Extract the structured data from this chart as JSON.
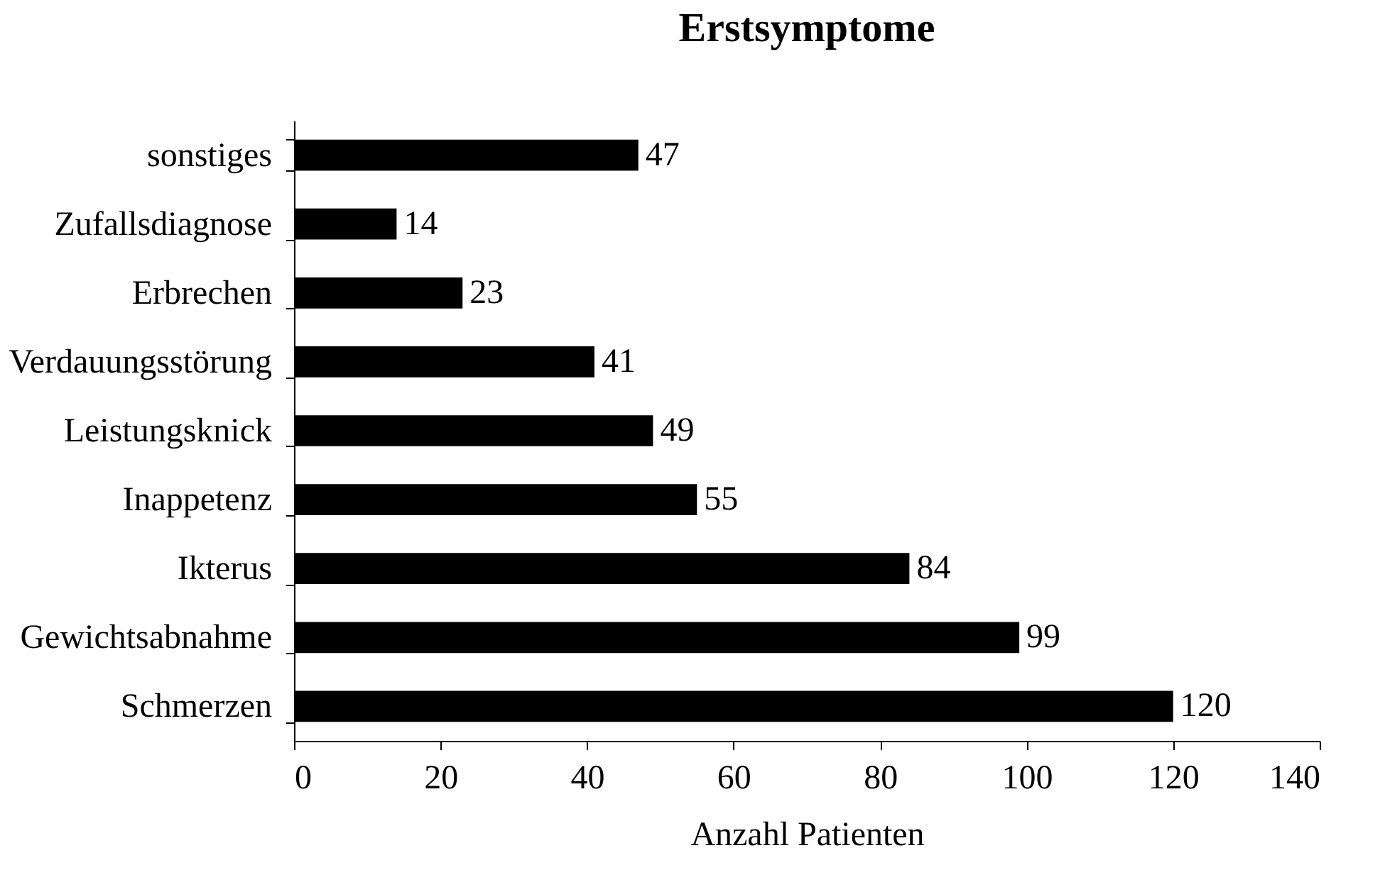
{
  "chart_data": {
    "type": "bar",
    "orientation": "horizontal",
    "title": "Erstsymptome",
    "xlabel": "Anzahl Patienten",
    "categories": [
      "sonstiges",
      "Zufallsdiagnose",
      "Erbrechen",
      "Verdauungsstörung",
      "Leistungsknick",
      "Inappetenz",
      "Ikterus",
      "Gewichtsabnahme",
      "Schmerzen"
    ],
    "values": [
      47,
      14,
      23,
      41,
      49,
      55,
      84,
      99,
      120
    ],
    "color": "#000000",
    "xlim": [
      0,
      140
    ],
    "xticks": [
      0,
      20,
      40,
      60,
      80,
      100,
      120,
      140
    ],
    "data_labels": true,
    "grid": false
  }
}
